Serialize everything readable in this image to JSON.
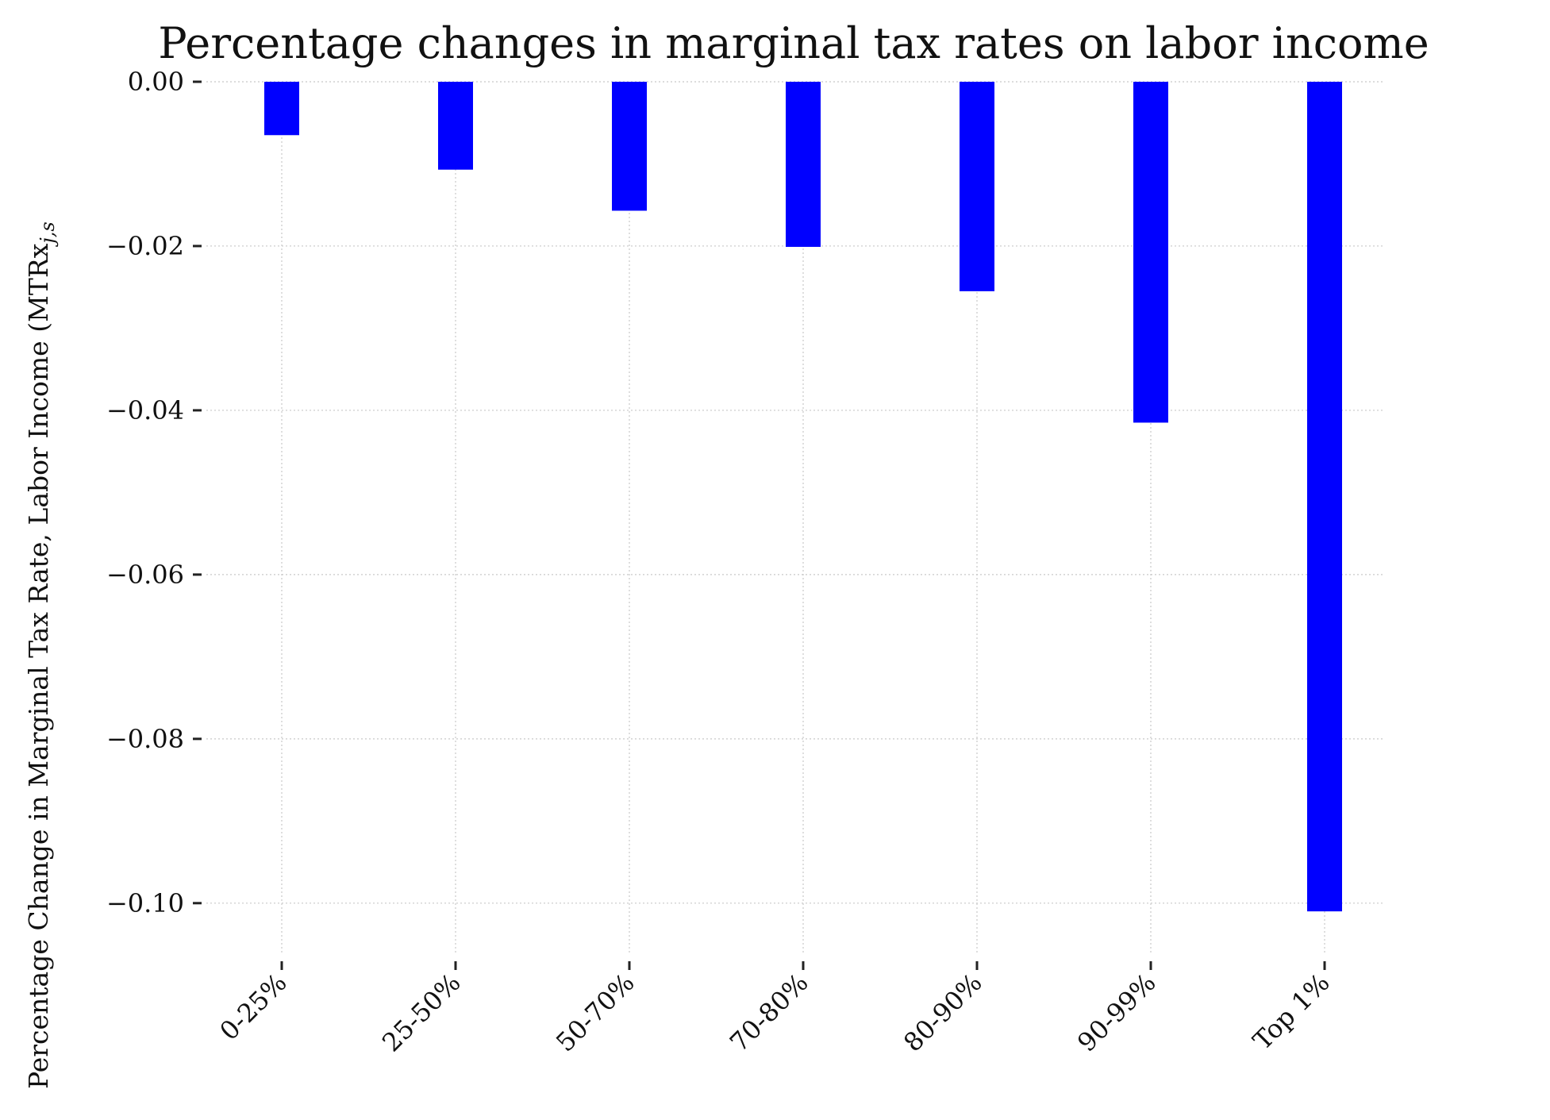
{
  "chart_data": {
    "type": "bar",
    "title": "Percentage changes in marginal tax rates on labor income",
    "xlabel": "",
    "ylabel": "Percentage Change in Marginal Tax Rate, Labor Income (MTRx",
    "ylabel_subscript": "j,s",
    "categories": [
      "0-25%",
      "25-50%",
      "50-70%",
      "70-80%",
      "80-90%",
      "90-99%",
      "Top 1%"
    ],
    "values": [
      -0.0065,
      -0.0107,
      -0.0157,
      -0.0201,
      -0.0255,
      -0.0415,
      -0.101
    ],
    "yticks": [
      "0.00",
      "−0.02",
      "−0.04",
      "−0.06",
      "−0.08",
      "−0.10"
    ],
    "ytick_values": [
      0.0,
      -0.02,
      -0.04,
      -0.06,
      -0.08,
      -0.1
    ],
    "ylim": [
      -0.1063,
      0.0
    ],
    "bar_color": "#0000ff",
    "grid": true,
    "legend": "none"
  }
}
